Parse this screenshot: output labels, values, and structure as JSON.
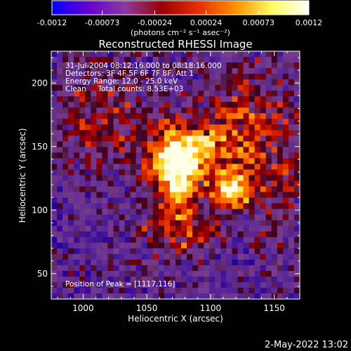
{
  "chart_data": {
    "type": "heatmap",
    "title": "Reconstructed RHESSI Image",
    "xlabel": "Heliocentric X (arcsec)",
    "ylabel": "Heliocentric Y (arcsec)",
    "xlim": [
      975,
      1170
    ],
    "ylim": [
      30,
      225
    ],
    "x_ticks": [
      1000,
      1050,
      1100,
      1150
    ],
    "y_ticks": [
      50,
      100,
      150,
      200
    ],
    "colorbar": {
      "range": [
        -0.0012,
        0.0012
      ],
      "tick_values": [
        -0.0012,
        -0.00073,
        -0.00024,
        0.00024,
        0.00073,
        0.0012
      ],
      "tick_labels": [
        "-0.0012",
        "-0.00073",
        "-0.00024",
        "0.00024",
        "0.00073",
        "0.0012"
      ],
      "units": "(photons cm⁻² s⁻¹ asec⁻²)",
      "colors": [
        "#0000ff",
        "#6a00d0",
        "#8a3aa0",
        "#9a0000",
        "#e63000",
        "#ff9000",
        "#ffff60",
        "#ffffff"
      ]
    },
    "annotations": [
      "31-Jul-2004 08:12:16.000 to 08:18:16.000",
      "Detectors: 3F 4F 5F 6F 7F 8F, Att 1",
      "Energy Range: 12.0 - 25.0 keV",
      "Clean     Total counts: 8.53E+03"
    ],
    "peak_label": "Position of Peak = [1117,116]",
    "sources": [
      {
        "x": 1072,
        "y": 133,
        "amp": 1.0,
        "sx": 13,
        "sy": 20
      },
      {
        "x": 1117,
        "y": 116,
        "amp": 1.05,
        "sx": 10,
        "sy": 9
      },
      {
        "x": 1094,
        "y": 146,
        "amp": 0.55,
        "sx": 22,
        "sy": 16
      },
      {
        "x": 1128,
        "y": 175,
        "amp": 0.35,
        "sx": 22,
        "sy": 30
      },
      {
        "x": 1015,
        "y": 170,
        "amp": 0.35,
        "sx": 26,
        "sy": 26
      },
      {
        "x": 1075,
        "y": 85,
        "amp": 0.45,
        "sx": 20,
        "sy": 16
      },
      {
        "x": 1150,
        "y": 120,
        "amp": 0.3,
        "sx": 14,
        "sy": 30
      }
    ]
  },
  "footer_timestamp": "2-May-2022 13:02"
}
